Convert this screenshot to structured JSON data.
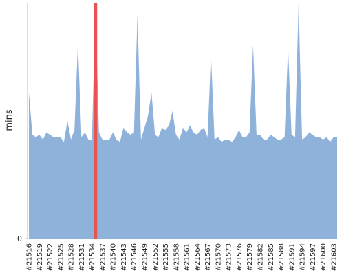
{
  "chart_data": {
    "type": "area",
    "y_label": "mins",
    "categories": [
      "#21516",
      null,
      null,
      "#21519",
      null,
      null,
      "#21522",
      null,
      null,
      "#21525",
      null,
      null,
      "#21528",
      null,
      null,
      "#21531",
      null,
      null,
      "#21534",
      null,
      null,
      "#21537",
      null,
      null,
      "#21540",
      null,
      null,
      "#21543",
      null,
      null,
      "#21546",
      null,
      null,
      "#21549",
      null,
      null,
      "#21552",
      null,
      null,
      "#21555",
      null,
      null,
      "#21558",
      null,
      null,
      "#21561",
      null,
      null,
      "#21564",
      null,
      null,
      "#21567",
      null,
      null,
      "#21570",
      null,
      null,
      "#21573",
      null,
      null,
      "#21576",
      null,
      null,
      "#21579",
      null,
      null,
      "#21582",
      null,
      null,
      "#21585",
      null,
      null,
      "#21588",
      null,
      null,
      "#21591",
      null,
      null,
      "#21594",
      null,
      null,
      "#21597",
      null,
      null,
      "#21600",
      null,
      null,
      "#21603",
      null
    ],
    "values": [
      62,
      44,
      43,
      44,
      42,
      45,
      44,
      43,
      43,
      43,
      41,
      50,
      42,
      46,
      83,
      43,
      45,
      42,
      42,
      100,
      45,
      42,
      42,
      42,
      45,
      42,
      41,
      47,
      45,
      44,
      45,
      95,
      42,
      47,
      52,
      62,
      44,
      43,
      47,
      46,
      48,
      54,
      44,
      42,
      47,
      45,
      48,
      45,
      44,
      46,
      47,
      43,
      78,
      42,
      43,
      41,
      42,
      42,
      41,
      43,
      46,
      43,
      43,
      45,
      82,
      44,
      44,
      42,
      42,
      44,
      43,
      42,
      42,
      43,
      81,
      44,
      43,
      100,
      42,
      43,
      45,
      44,
      43,
      43,
      42,
      43,
      41,
      43,
      43
    ],
    "color": "#8fb2db",
    "highlight_index": 19,
    "highlight_color": "#e8534f",
    "ylim": [
      0,
      100
    ],
    "yticks": [
      0
    ]
  }
}
